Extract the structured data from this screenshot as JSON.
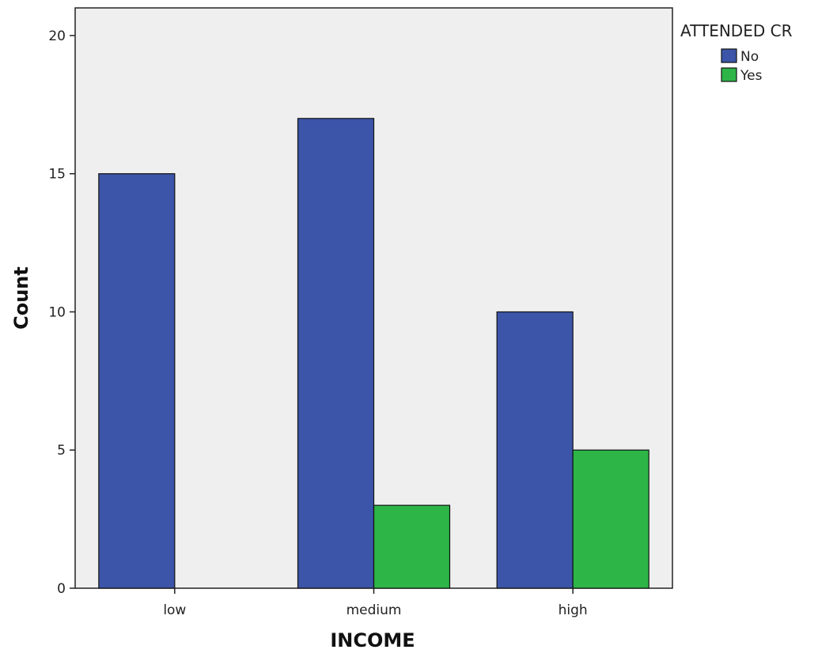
{
  "chart_data": {
    "type": "bar",
    "xlabel": "INCOME",
    "ylabel": "Count",
    "categories": [
      "low",
      "medium",
      "high"
    ],
    "series": [
      {
        "name": "No",
        "values": [
          15,
          17,
          10
        ],
        "color": "#3c55a8"
      },
      {
        "name": "Yes",
        "values": [
          0,
          3,
          5
        ],
        "color": "#2db548"
      }
    ],
    "ylim": [
      0,
      21
    ],
    "yticks": [
      0,
      5,
      10,
      15,
      20
    ],
    "legend": {
      "title": "ATTENDED CR",
      "placement": "top-right-outside"
    },
    "grid": false,
    "plot_background": "#efefef"
  }
}
